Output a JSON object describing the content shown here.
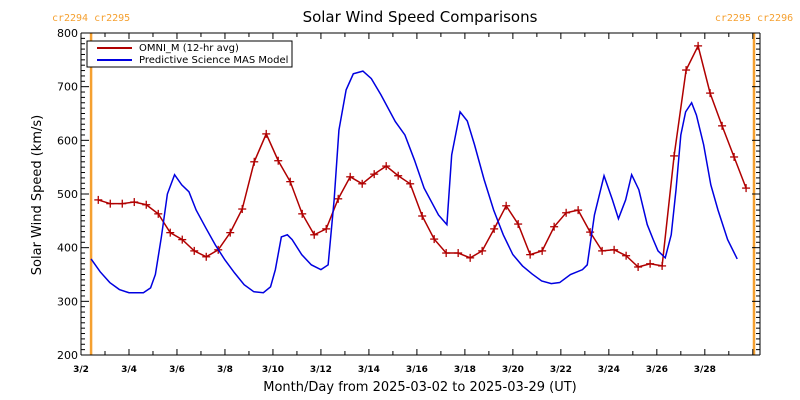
{
  "chart_data": {
    "type": "line",
    "title": "Solar Wind Speed Comparisons",
    "xlabel": "Month/Day from 2025-03-02 to 2025-03-29 (UT)",
    "ylabel": "Solar Wind Speed (km/s)",
    "xlim_days": [
      0,
      28.3
    ],
    "ylim": [
      200,
      800
    ],
    "x_unit": "days since 2025-03-02 00:00 UT",
    "yticks": [
      200,
      300,
      400,
      500,
      600,
      700,
      800
    ],
    "xticks": [
      {
        "day": 0,
        "label": "3/2"
      },
      {
        "day": 2,
        "label": "3/4"
      },
      {
        "day": 4,
        "label": "3/6"
      },
      {
        "day": 6,
        "label": "3/8"
      },
      {
        "day": 8,
        "label": "3/10"
      },
      {
        "day": 10,
        "label": "3/12"
      },
      {
        "day": 12,
        "label": "3/14"
      },
      {
        "day": 14,
        "label": "3/16"
      },
      {
        "day": 16,
        "label": "3/18"
      },
      {
        "day": 18,
        "label": "3/20"
      },
      {
        "day": 20,
        "label": "3/22"
      },
      {
        "day": 22,
        "label": "3/24"
      },
      {
        "day": 24,
        "label": "3/26"
      },
      {
        "day": 26,
        "label": "3/28"
      }
    ],
    "grid": false,
    "legend_position": "top-left",
    "carrington_markers": [
      {
        "day": 0.42,
        "label_left": "cr2294",
        "label_right": "cr2295"
      },
      {
        "day": 28.05,
        "label_left": "cr2295",
        "label_right": "cr2296"
      }
    ],
    "series": [
      {
        "name": "OMNI_M (12-hr avg)",
        "color": "#b00000",
        "markers": true,
        "x_start": 0.72,
        "x_step": 0.5,
        "values": [
          489,
          482,
          482,
          485,
          480,
          463,
          428,
          415,
          394,
          383,
          396,
          428,
          472,
          560,
          612,
          562,
          523,
          463,
          424,
          435,
          491,
          532,
          519,
          537,
          552,
          534,
          519,
          459,
          416,
          390,
          390,
          381,
          394,
          435,
          478,
          444,
          387,
          394,
          439,
          465,
          470,
          429,
          394,
          396,
          385,
          364,
          370,
          366,
          571,
          731,
          776,
          688,
          627,
          569,
          511
        ]
      },
      {
        "name": "Predictive Science MAS Model",
        "color": "#0000e0",
        "markers": false,
        "points": [
          [
            0.42,
            379
          ],
          [
            0.8,
            355
          ],
          [
            1.2,
            335
          ],
          [
            1.6,
            322
          ],
          [
            2.0,
            316
          ],
          [
            2.6,
            316
          ],
          [
            2.9,
            325
          ],
          [
            3.1,
            350
          ],
          [
            3.35,
            420
          ],
          [
            3.6,
            500
          ],
          [
            3.9,
            536
          ],
          [
            4.2,
            517
          ],
          [
            4.5,
            504
          ],
          [
            4.8,
            470
          ],
          [
            5.2,
            437
          ],
          [
            5.6,
            405
          ],
          [
            6.0,
            377
          ],
          [
            6.4,
            353
          ],
          [
            6.8,
            331
          ],
          [
            7.2,
            318
          ],
          [
            7.6,
            316
          ],
          [
            7.9,
            327
          ],
          [
            8.1,
            359
          ],
          [
            8.35,
            420
          ],
          [
            8.6,
            424
          ],
          [
            8.8,
            415
          ],
          [
            9.2,
            387
          ],
          [
            9.6,
            368
          ],
          [
            10.0,
            359
          ],
          [
            10.3,
            368
          ],
          [
            10.55,
            489
          ],
          [
            10.75,
            619
          ],
          [
            11.05,
            694
          ],
          [
            11.35,
            724
          ],
          [
            11.75,
            729
          ],
          [
            12.1,
            715
          ],
          [
            12.5,
            685
          ],
          [
            13.1,
            635
          ],
          [
            13.5,
            610
          ],
          [
            13.9,
            563
          ],
          [
            14.3,
            511
          ],
          [
            14.9,
            461
          ],
          [
            15.25,
            443
          ],
          [
            15.45,
            573
          ],
          [
            15.8,
            653
          ],
          [
            16.1,
            636
          ],
          [
            16.4,
            592
          ],
          [
            16.8,
            527
          ],
          [
            17.2,
            470
          ],
          [
            17.6,
            424
          ],
          [
            18.0,
            387
          ],
          [
            18.4,
            366
          ],
          [
            18.8,
            351
          ],
          [
            19.2,
            338
          ],
          [
            19.6,
            333
          ],
          [
            19.95,
            335
          ],
          [
            20.4,
            350
          ],
          [
            20.9,
            359
          ],
          [
            21.1,
            368
          ],
          [
            21.4,
            461
          ],
          [
            21.8,
            534
          ],
          [
            22.15,
            489
          ],
          [
            22.4,
            454
          ],
          [
            22.7,
            489
          ],
          [
            22.95,
            536
          ],
          [
            23.25,
            508
          ],
          [
            23.6,
            443
          ],
          [
            23.85,
            415
          ],
          [
            24.05,
            394
          ],
          [
            24.35,
            381
          ],
          [
            24.6,
            424
          ],
          [
            24.8,
            508
          ],
          [
            25.0,
            610
          ],
          [
            25.2,
            653
          ],
          [
            25.45,
            670
          ],
          [
            25.65,
            647
          ],
          [
            25.95,
            592
          ],
          [
            26.25,
            517
          ],
          [
            26.55,
            470
          ],
          [
            26.95,
            415
          ],
          [
            27.35,
            379
          ]
        ]
      }
    ]
  }
}
